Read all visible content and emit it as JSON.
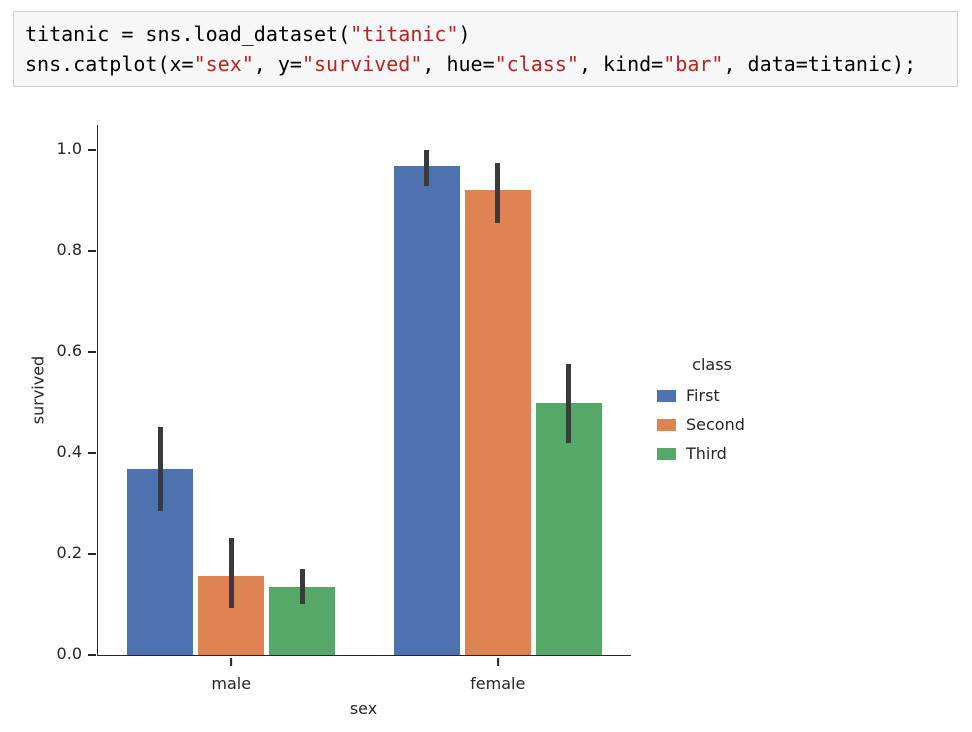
{
  "code_cell": {
    "lines": [
      {
        "tokens": [
          {
            "t": "titanic = sns.load_dataset(",
            "c": "code"
          },
          {
            "t": "\"titanic\"",
            "c": "str"
          },
          {
            "t": ")",
            "c": "code"
          }
        ]
      },
      {
        "tokens": [
          {
            "t": "sns.catplot(x=",
            "c": "code"
          },
          {
            "t": "\"sex\"",
            "c": "str"
          },
          {
            "t": ", y=",
            "c": "code"
          },
          {
            "t": "\"survived\"",
            "c": "str"
          },
          {
            "t": ", hue=",
            "c": "code"
          },
          {
            "t": "\"class\"",
            "c": "str"
          },
          {
            "t": ", kind=",
            "c": "code"
          },
          {
            "t": "\"bar\"",
            "c": "str"
          },
          {
            "t": ", data=titanic);",
            "c": "code"
          }
        ]
      }
    ],
    "string_color": "#ba2121"
  },
  "chart_data": {
    "type": "bar",
    "title": "",
    "xlabel": "sex",
    "ylabel": "survived",
    "ylim": [
      0,
      1.05
    ],
    "yticks": [
      0.0,
      0.2,
      0.4,
      0.6,
      0.8,
      1.0
    ],
    "categories": [
      "male",
      "female"
    ],
    "legend_title": "class",
    "legend_position": "right",
    "grid": false,
    "error_bar_color": "#3a3a3a",
    "series": [
      {
        "name": "First",
        "color": "#4c72b0",
        "values": [
          0.368,
          0.968
        ],
        "ci_low": [
          0.285,
          0.93
        ],
        "ci_high": [
          0.452,
          1.0
        ]
      },
      {
        "name": "Second",
        "color": "#dd8452",
        "values": [
          0.157,
          0.921
        ],
        "ci_low": [
          0.093,
          0.856
        ],
        "ci_high": [
          0.231,
          0.975
        ]
      },
      {
        "name": "Third",
        "color": "#55a868",
        "values": [
          0.135,
          0.5
        ],
        "ci_low": [
          0.101,
          0.42
        ],
        "ci_high": [
          0.17,
          0.576
        ]
      }
    ]
  }
}
